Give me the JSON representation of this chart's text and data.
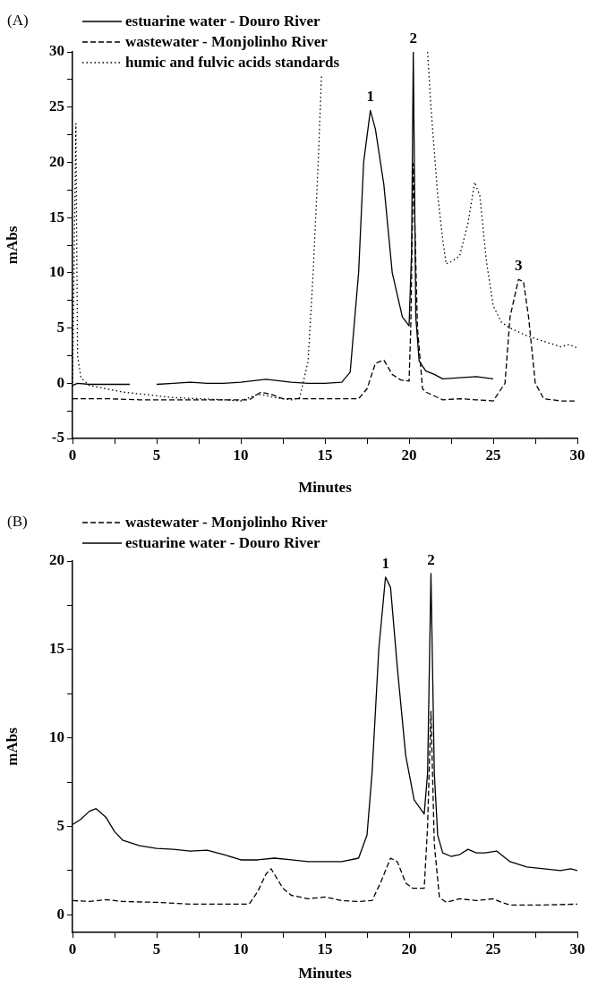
{
  "chart_data": [
    {
      "type": "line",
      "title": "(A)",
      "xlabel": "Minutes",
      "ylabel": "mAbs",
      "legend": "top left",
      "marker": "none",
      "grid": false,
      "xlim": [
        0,
        30
      ],
      "xticks": [
        0,
        {
          "value": 2.5,
          "label": null
        },
        5,
        {
          "value": 7.5,
          "label": null
        },
        10,
        {
          "value": 12.5,
          "label": null
        },
        15,
        {
          "value": 17.5,
          "label": null
        },
        20,
        {
          "value": 22.5,
          "label": null
        },
        25,
        {
          "value": 27.5,
          "label": null
        },
        30
      ],
      "ylim": [
        -5,
        30
      ],
      "yticks": [
        -5,
        {
          "value": -2.5,
          "label": null
        },
        0,
        {
          "value": 2.5,
          "label": null
        },
        5,
        {
          "value": 7.5,
          "label": null
        },
        10,
        {
          "value": 12.5,
          "label": null
        },
        15,
        {
          "value": 17.5,
          "label": null
        },
        20,
        {
          "value": 22.5,
          "label": null
        },
        25,
        {
          "value": 27.5,
          "label": null
        },
        30
      ],
      "series": [
        {
          "name": "estuarine water - Douro River",
          "color": "#000000",
          "line_style": "solid",
          "x": [
            0,
            0.3,
            1,
            2,
            3.4,
            4.2,
            5,
            6,
            7,
            8,
            9,
            10,
            11.5,
            13,
            14,
            15,
            16,
            16.5,
            17,
            17.3,
            17.7,
            18,
            18.5,
            19,
            19.6,
            20,
            20.15,
            20.25,
            20.4,
            20.6,
            21,
            21.5,
            22,
            23,
            24,
            25
          ],
          "values": [
            -0.2,
            0,
            -0.1,
            -0.1,
            -0.1,
            null,
            -0.1,
            0,
            0.1,
            0,
            0,
            0.1,
            0.35,
            0.1,
            0,
            0,
            0.1,
            1,
            10,
            20,
            24.7,
            23,
            18,
            10,
            6,
            5.2,
            12,
            30,
            6,
            2,
            1.1,
            0.8,
            0.4,
            0.5,
            0.6,
            0.4
          ]
        },
        {
          "name": "wastewater - Monjolinho River",
          "color": "#000000",
          "line_style": "dashed",
          "x": [
            0,
            2,
            4,
            6,
            8,
            10,
            10.5,
            11.2,
            11.8,
            12.5,
            15,
            17,
            17.5,
            18,
            18.5,
            19,
            19.5,
            20,
            20.1,
            20.25,
            20.5,
            20.8,
            21,
            22,
            23,
            24,
            25,
            25.7,
            26,
            26.5,
            26.8,
            27.1,
            27.5,
            28,
            29,
            30
          ],
          "values": [
            -1.4,
            -1.4,
            -1.5,
            -1.5,
            -1.5,
            -1.5,
            -1.5,
            -0.8,
            -1,
            -1.4,
            -1.4,
            -1.4,
            -0.5,
            1.8,
            2.1,
            0.8,
            0.3,
            0.2,
            5,
            19.9,
            5,
            -0.5,
            -0.8,
            -1.5,
            -1.4,
            -1.5,
            -1.6,
            0,
            6,
            9.4,
            9.2,
            6,
            0,
            -1.4,
            -1.6,
            -1.6
          ]
        },
        {
          "name": "humic and fulvic acids standards",
          "color": "#000000",
          "line_style": "dotted",
          "x": [
            0,
            0.2,
            0.3,
            0.5,
            1,
            3,
            6,
            9,
            10,
            11,
            11.5,
            12,
            13,
            13.5,
            14,
            14.3,
            14.6,
            14.8,
            16,
            21.1,
            21.3,
            21.7,
            22,
            22.2,
            22.5,
            23,
            23.5,
            23.9,
            24.2,
            24.6,
            25,
            25.5,
            26,
            27,
            28,
            29,
            29.5,
            30
          ],
          "values": [
            -0.3,
            23.5,
            2.5,
            0.5,
            -0.2,
            -0.8,
            -1.3,
            -1.5,
            -1.6,
            -1,
            -1.1,
            -1.3,
            -1.5,
            -1.3,
            2,
            10,
            20,
            28,
            null,
            30,
            25,
            17,
            13,
            10.8,
            11,
            11.5,
            14.5,
            18.2,
            17,
            11,
            7,
            5.5,
            5,
            4.3,
            3.8,
            3.3,
            3.5,
            3.2
          ]
        }
      ],
      "annotations": [
        {
          "text": "1",
          "x": 17.7,
          "y": 24.7
        },
        {
          "text": "2",
          "x": 20.25,
          "y": 30
        },
        {
          "text": "3",
          "x": 26.5,
          "y": 9.4
        }
      ]
    },
    {
      "type": "line",
      "title": "(B)",
      "xlabel": "Minutes",
      "ylabel": "mAbs",
      "legend": "top left",
      "marker": "none",
      "grid": false,
      "xlim": [
        0,
        30
      ],
      "xticks": [
        0,
        {
          "value": 2.5,
          "label": null
        },
        5,
        {
          "value": 7.5,
          "label": null
        },
        10,
        {
          "value": 12.5,
          "label": null
        },
        15,
        {
          "value": 17.5,
          "label": null
        },
        20,
        {
          "value": 22.5,
          "label": null
        },
        25,
        {
          "value": 27.5,
          "label": null
        },
        30
      ],
      "ylim": [
        -1,
        20
      ],
      "yticks": [
        0,
        {
          "value": 2.5,
          "label": null
        },
        5,
        {
          "value": 7.5,
          "label": null
        },
        10,
        {
          "value": 12.5,
          "label": null
        },
        15,
        {
          "value": 17.5,
          "label": null
        },
        20
      ],
      "series": [
        {
          "name": "wastewater - Monjolinho River",
          "color": "#000000",
          "line_style": "dashed",
          "x": [
            0,
            1,
            2,
            3,
            5,
            7,
            9,
            10.5,
            11,
            11.5,
            11.8,
            12.5,
            13,
            14,
            15,
            16,
            17,
            17.8,
            18.3,
            18.9,
            19.3,
            19.8,
            20.2,
            20.9,
            21.1,
            21.3,
            21.5,
            21.8,
            22.2,
            23,
            24,
            25,
            25.5,
            26,
            28,
            30
          ],
          "values": [
            0.8,
            0.75,
            0.85,
            0.75,
            0.7,
            0.6,
            0.6,
            0.6,
            1.3,
            2.3,
            2.6,
            1.5,
            1.1,
            0.9,
            1,
            0.8,
            0.75,
            0.8,
            1.8,
            3.2,
            3,
            1.8,
            1.5,
            1.5,
            5,
            11.5,
            4,
            1,
            0.7,
            0.9,
            0.8,
            0.9,
            0.7,
            0.55,
            0.55,
            0.6
          ]
        },
        {
          "name": "estuarine water - Douro River",
          "color": "#000000",
          "line_style": "solid",
          "x": [
            0,
            0.5,
            1,
            1.4,
            2,
            2.5,
            3,
            4,
            5,
            6,
            7,
            8,
            9,
            10,
            11,
            12,
            13,
            14,
            16,
            17,
            17.5,
            17.8,
            18.2,
            18.6,
            18.9,
            19.3,
            19.8,
            20.3,
            20.9,
            21.1,
            21.3,
            21.5,
            21.7,
            22,
            22.5,
            23,
            23.5,
            24,
            24.5,
            25.2,
            26,
            27,
            28,
            29,
            29.6,
            30
          ],
          "values": [
            5.1,
            5.4,
            5.85,
            6,
            5.5,
            4.7,
            4.2,
            3.9,
            3.75,
            3.7,
            3.6,
            3.65,
            3.4,
            3.1,
            3.1,
            3.2,
            3.1,
            3,
            3,
            3.2,
            4.5,
            8,
            15,
            19.1,
            18.5,
            14,
            9,
            6.5,
            5.7,
            8,
            19.3,
            8,
            4.5,
            3.5,
            3.3,
            3.4,
            3.7,
            3.5,
            3.5,
            3.6,
            3,
            2.7,
            2.6,
            2.5,
            2.6,
            2.5
          ]
        }
      ],
      "annotations": [
        {
          "text": "1",
          "x": 18.6,
          "y": 19.1
        },
        {
          "text": "2",
          "x": 21.3,
          "y": 19.3
        }
      ]
    }
  ]
}
